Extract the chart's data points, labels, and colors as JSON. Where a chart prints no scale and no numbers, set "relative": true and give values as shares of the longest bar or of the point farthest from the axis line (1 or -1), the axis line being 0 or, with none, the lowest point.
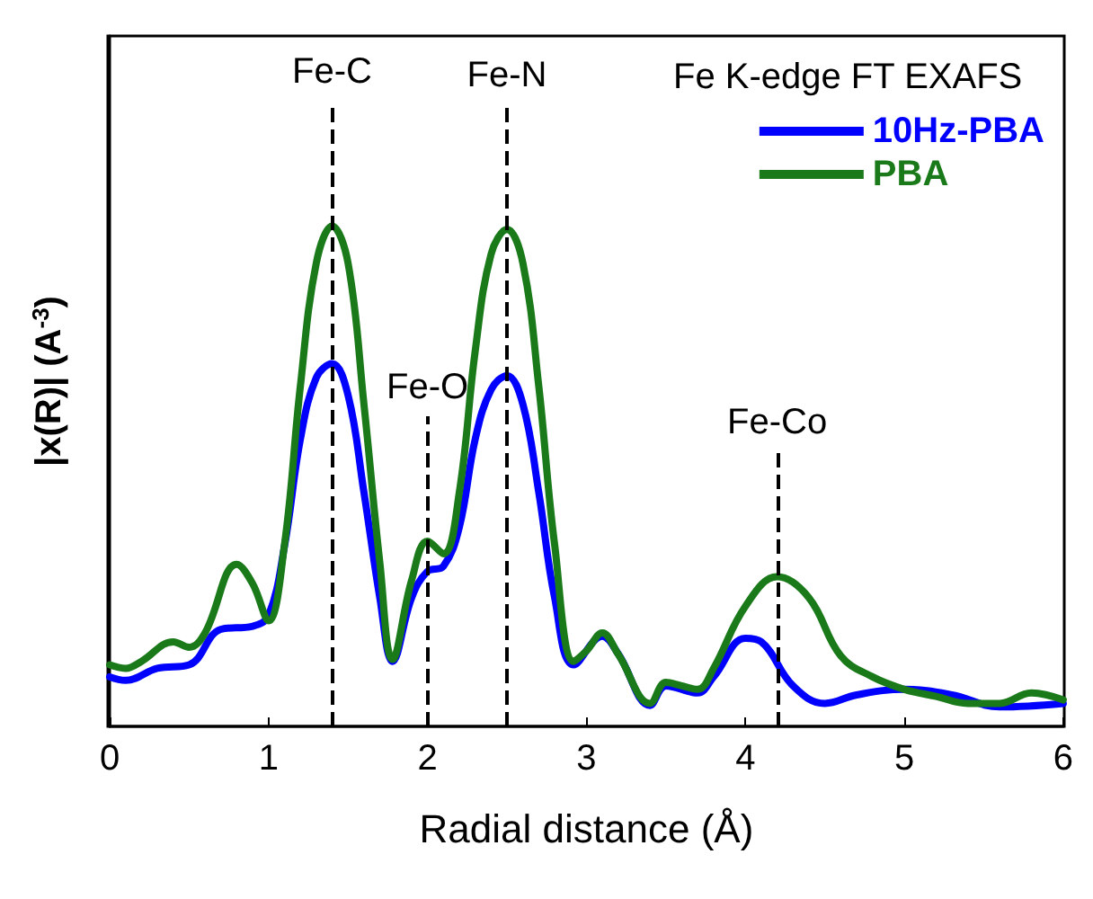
{
  "chart_data": {
    "type": "line",
    "title": "Fe K-edge FT EXAFS",
    "xlabel": "Radial distance (Å)",
    "ylabel": "|x(R)| (A$^{-3}$)",
    "relative": true,
    "xlim": [
      0,
      6
    ],
    "xticks": [
      0,
      1,
      2,
      3,
      4,
      5,
      6
    ],
    "grid": false,
    "legend": "top right",
    "marker": "none",
    "line_style": "solid",
    "tick_labels": "x",
    "series": [
      {
        "name": "10Hz-PBA",
        "color": "#0000ff",
        "x": [
          0,
          0.1,
          0.3,
          0.5,
          0.7,
          0.9,
          1.0,
          1.1,
          1.2,
          1.3,
          1.4,
          1.5,
          1.6,
          1.7,
          1.78,
          1.9,
          2.0,
          2.1,
          2.2,
          2.3,
          2.4,
          2.5,
          2.6,
          2.7,
          2.8,
          2.92,
          3.1,
          3.2,
          3.4,
          3.5,
          3.7,
          3.8,
          4.0,
          4.1,
          4.3,
          4.5,
          4.7,
          5.0,
          5.3,
          5.6,
          6.0
        ],
        "values": [
          0.099,
          0.092,
          0.116,
          0.123,
          0.194,
          0.2,
          0.222,
          0.36,
          0.574,
          0.697,
          0.725,
          0.662,
          0.468,
          0.257,
          0.13,
          0.257,
          0.31,
          0.32,
          0.398,
          0.574,
          0.673,
          0.701,
          0.644,
          0.468,
          0.257,
          0.123,
          0.18,
          0.145,
          0.042,
          0.081,
          0.067,
          0.099,
          0.176,
          0.169,
          0.081,
          0.046,
          0.063,
          0.074,
          0.063,
          0.039,
          0.046
        ]
      },
      {
        "name": "PBA",
        "color": "#1a7a1a",
        "x": [
          0,
          0.1,
          0.2,
          0.4,
          0.5,
          0.6,
          0.8,
          0.9,
          1.0,
          1.1,
          1.2,
          1.3,
          1.4,
          1.5,
          1.6,
          1.7,
          1.78,
          1.9,
          2.0,
          2.1,
          2.2,
          2.3,
          2.4,
          2.5,
          2.6,
          2.7,
          2.8,
          2.92,
          3.0,
          3.1,
          3.2,
          3.4,
          3.5,
          3.6,
          3.7,
          3.8,
          4.0,
          4.2,
          4.4,
          4.6,
          4.8,
          5.0,
          5.2,
          5.4,
          5.6,
          5.8,
          6.0
        ],
        "values": [
          0.123,
          0.116,
          0.13,
          0.169,
          0.158,
          0.187,
          0.324,
          0.285,
          0.211,
          0.363,
          0.68,
          0.926,
          1,
          0.926,
          0.644,
          0.327,
          0.134,
          0.292,
          0.37,
          0.345,
          0.468,
          0.75,
          0.944,
          0.993,
          0.926,
          0.68,
          0.363,
          0.13,
          0.151,
          0.187,
          0.144,
          0.046,
          0.088,
          0.081,
          0.074,
          0.116,
          0.24,
          0.299,
          0.257,
          0.141,
          0.099,
          0.074,
          0.06,
          0.046,
          0.046,
          0.067,
          0.053
        ]
      }
    ],
    "ref_lines": [
      {
        "axis": "x",
        "value": 1.4,
        "label": "Fe-C",
        "line_style": "dashed",
        "color": "#000000"
      },
      {
        "axis": "x",
        "value": 2.0,
        "label": "Fe-O",
        "line_style": "dashed",
        "color": "#000000"
      },
      {
        "axis": "x",
        "value": 2.5,
        "label": "Fe-N",
        "line_style": "dashed",
        "color": "#000000"
      },
      {
        "axis": "x",
        "value": 4.2,
        "label": "Fe-Co",
        "line_style": "dashed",
        "color": "#000000"
      }
    ]
  }
}
